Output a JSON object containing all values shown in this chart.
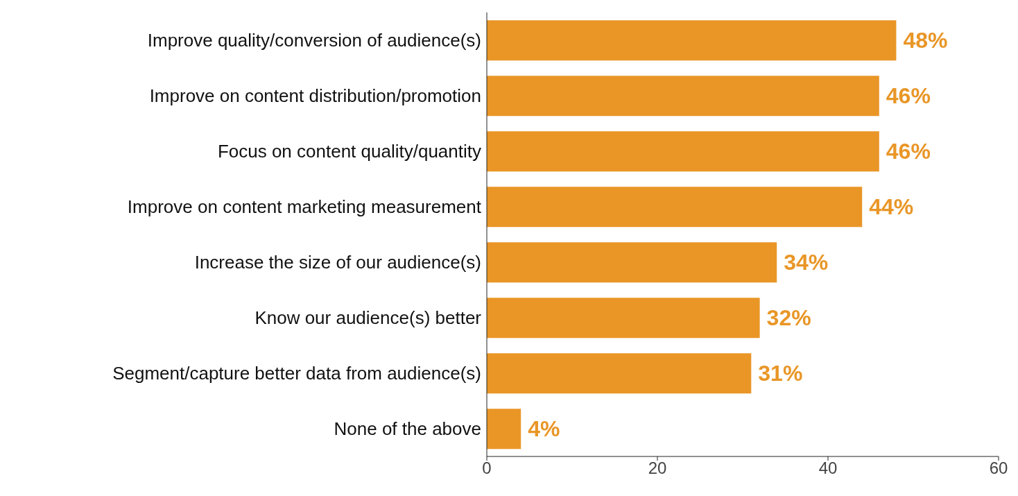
{
  "chart_data": {
    "type": "bar",
    "orientation": "horizontal",
    "categories": [
      "Improve quality/conversion of audience(s)",
      "Improve on content distribution/promotion",
      "Focus on content quality/quantity",
      "Improve on content marketing measurement",
      "Increase the size of our audience(s)",
      "Know our audience(s) better",
      "Segment/capture better data from audience(s)",
      "None of the above"
    ],
    "values": [
      48,
      46,
      46,
      44,
      34,
      32,
      31,
      4
    ],
    "value_labels": [
      "48%",
      "46%",
      "46%",
      "44%",
      "34%",
      "32%",
      "31%",
      "4%"
    ],
    "color": "#e99627",
    "xlim": [
      0,
      60
    ],
    "xticks": [
      0,
      20,
      40,
      60
    ],
    "grid": false,
    "legend": false
  }
}
